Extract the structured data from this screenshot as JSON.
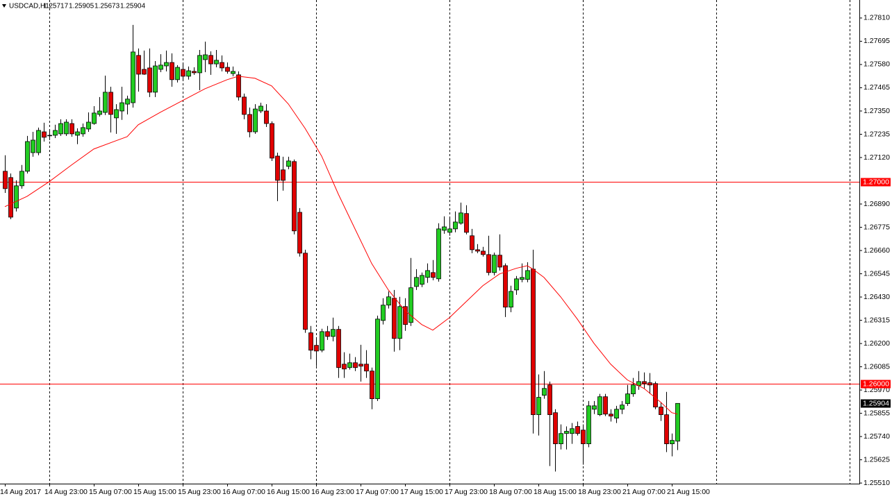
{
  "chart_data": {
    "type": "candlestick",
    "title": "USDCAD,H1",
    "up_color": "#22cc22",
    "down_color": "#e00000",
    "hline_color": "#ff0000",
    "grid": true,
    "ylim": [
      1.25507,
      1.27899
    ],
    "yticks": [
      {
        "value": 1.2781,
        "label": "1.27810"
      },
      1.27695,
      {
        "value": 1.2758,
        "label": "1.27580"
      },
      1.27465,
      {
        "value": 1.2735,
        "label": "1.27350"
      },
      1.27235,
      {
        "value": 1.2712,
        "label": "1.27120"
      },
      {
        "value": 1.2689,
        "label": "1.26890"
      },
      1.26775,
      {
        "value": 1.2666,
        "label": "1.26660"
      },
      1.26545,
      {
        "value": 1.2643,
        "label": "1.26430"
      },
      1.26315,
      {
        "value": 1.262,
        "label": "1.26200"
      },
      1.26085,
      {
        "value": 1.2597,
        "label": "1.25970"
      },
      1.25855,
      {
        "value": 1.2574,
        "label": "1.25740"
      },
      1.25625,
      {
        "value": 1.2551,
        "label": "1.25510"
      }
    ],
    "hlines": [
      {
        "value": 1.27,
        "label": "1.27000"
      },
      {
        "value": 1.26,
        "label": "1.26000"
      }
    ],
    "categories": [
      "14 Aug 2017",
      null,
      null,
      null,
      null,
      null,
      null,
      null,
      "14 Aug 23:00",
      null,
      null,
      null,
      null,
      null,
      null,
      null,
      "15 Aug 07:00",
      null,
      null,
      null,
      null,
      null,
      null,
      null,
      "15 Aug 15:00",
      null,
      null,
      null,
      null,
      null,
      null,
      null,
      "15 Aug 23:00",
      null,
      null,
      null,
      null,
      null,
      null,
      null,
      "16 Aug 07:00",
      null,
      null,
      null,
      null,
      null,
      null,
      null,
      "16 Aug 15:00",
      null,
      null,
      null,
      null,
      null,
      null,
      null,
      "16 Aug 23:00",
      null,
      null,
      null,
      null,
      null,
      null,
      null,
      "17 Aug 07:00",
      null,
      null,
      null,
      null,
      null,
      null,
      null,
      "17 Aug 15:00",
      null,
      null,
      null,
      null,
      null,
      null,
      null,
      "17 Aug 23:00",
      null,
      null,
      null,
      null,
      null,
      null,
      null,
      "18 Aug 07:00",
      null,
      null,
      null,
      null,
      null,
      null,
      null,
      "18 Aug 15:00",
      null,
      null,
      null,
      null,
      null,
      null,
      null,
      "18 Aug 23:00",
      null,
      null,
      null,
      null,
      null,
      null,
      null,
      "21 Aug 07:00",
      null,
      null,
      null,
      null,
      null,
      null,
      null,
      "21 Aug 15:00",
      null
    ],
    "open": [
      1.27052,
      1.27021,
      1.2687,
      1.2698,
      1.27052,
      1.27144,
      1.27144,
      1.27247,
      1.27227,
      1.2723,
      1.27237,
      1.27237,
      1.27288,
      1.2723,
      1.27237,
      1.27261,
      1.27288,
      1.27333,
      1.27343,
      1.27443,
      1.27316,
      1.2735,
      1.27384,
      1.27391,
      1.27625,
      1.27556,
      1.27563,
      1.27443,
      1.27556,
      1.27573,
      1.2759,
      1.27505,
      1.27556,
      1.27522,
      1.27546,
      1.27539,
      1.27604,
      1.27625,
      1.27583,
      1.2759,
      1.27566,
      1.27535,
      1.27529,
      1.27419,
      1.27333,
      1.27247,
      1.2735,
      1.2735,
      1.27288,
      1.27127,
      1.27059,
      1.27076,
      1.271,
      1.26849,
      1.26647,
      1.26253,
      1.26191,
      1.26167,
      1.26259,
      1.26235,
      1.2627,
      1.26098,
      1.26081,
      1.26105,
      1.26098,
      1.26098,
      1.26064,
      1.25927,
      1.26314,
      1.2639,
      1.26424,
      1.26225,
      1.26383,
      1.26304,
      1.26482,
      1.26493,
      1.26527,
      1.26551,
      1.2652,
      1.2676,
      1.2675,
      1.26767,
      1.26795,
      1.26843,
      1.26733,
      1.26664,
      1.26657,
      1.2664,
      1.26551,
      1.26637,
      1.26585,
      1.2638,
      1.26465,
      1.26517,
      1.26517,
      1.26568,
      1.25848,
      1.25944,
      1.25995,
      1.25858,
      1.25704,
      1.25755,
      1.25755,
      1.2579,
      1.25772,
      1.25704,
      1.25875,
      1.25848,
      1.25937,
      1.25851,
      1.25831,
      1.25875,
      1.25903,
      1.25951,
      1.25992,
      1.26012,
      1.26006,
      1.26002,
      1.25886,
      1.25848,
      1.25704,
      1.25717
    ],
    "high": [
      1.27131,
      1.27041,
      1.27007,
      1.27083,
      1.27227,
      1.27247,
      1.27268,
      1.27292,
      1.27254,
      1.27282,
      1.27309,
      1.27309,
      1.27309,
      1.27264,
      1.27288,
      1.27343,
      1.27374,
      1.27419,
      1.27525,
      1.2747,
      1.27384,
      1.2747,
      1.27426,
      1.27776,
      1.27659,
      1.27649,
      1.27659,
      1.27597,
      1.27631,
      1.27649,
      1.27635,
      1.27577,
      1.27583,
      1.2757,
      1.27566,
      1.27652,
      1.27693,
      1.27645,
      1.27652,
      1.27625,
      1.2759,
      1.2757,
      1.27546,
      1.27436,
      1.27367,
      1.27384,
      1.27391,
      1.27384,
      1.27299,
      1.27144,
      1.27124,
      1.27124,
      1.2711,
      1.2687,
      1.26664,
      1.26287,
      1.26232,
      1.26273,
      1.26287,
      1.26328,
      1.26287,
      1.26157,
      1.2615,
      1.26133,
      1.26194,
      1.26167,
      1.26081,
      1.26338,
      1.26424,
      1.26458,
      1.26465,
      1.26431,
      1.26424,
      1.26623,
      1.26568,
      1.26551,
      1.26596,
      1.26613,
      1.26795,
      1.26829,
      1.26819,
      1.26853,
      1.26897,
      1.26884,
      1.26767,
      1.26692,
      1.26678,
      1.26733,
      1.2665,
      1.2674,
      1.26596,
      1.26486,
      1.26534,
      1.26596,
      1.26602,
      1.26664,
      1.26047,
      1.26064,
      1.26012,
      1.25875,
      1.258,
      1.2579,
      1.25807,
      1.25814,
      1.258,
      1.25916,
      1.25916,
      1.25951,
      1.25951,
      1.25875,
      1.25892,
      1.25916,
      1.25995,
      1.2603,
      1.26064,
      1.26057,
      1.26054,
      1.26012,
      1.2591,
      1.25961,
      1.25755,
      1.25905
    ],
    "low": [
      1.26945,
      1.26815,
      1.26853,
      1.26966,
      1.27041,
      1.27124,
      1.27131,
      1.27199,
      1.27206,
      1.27216,
      1.27227,
      1.27227,
      1.27223,
      1.27186,
      1.27223,
      1.27247,
      1.27282,
      1.27323,
      1.2733,
      1.27244,
      1.27237,
      1.27306,
      1.27333,
      1.27367,
      1.27446,
      1.27529,
      1.27419,
      1.27419,
      1.27542,
      1.27546,
      1.2747,
      1.27491,
      1.27501,
      1.27505,
      1.27529,
      1.27453,
      1.27542,
      1.27529,
      1.27566,
      1.27546,
      1.27535,
      1.27522,
      1.27402,
      1.27309,
      1.2722,
      1.27237,
      1.2734,
      1.27271,
      1.27103,
      1.26904,
      1.26956,
      1.27062,
      1.2674,
      1.2663,
      1.26253,
      1.26122,
      1.26088,
      1.26157,
      1.26218,
      1.26211,
      1.2603,
      1.2603,
      1.26071,
      1.26064,
      1.26012,
      1.2603,
      1.25875,
      1.25916,
      1.26294,
      1.26373,
      1.2616,
      1.26167,
      1.26263,
      1.26287,
      1.26465,
      1.26479,
      1.265,
      1.26513,
      1.26506,
      1.26743,
      1.26733,
      1.2675,
      1.26788,
      1.2674,
      1.26647,
      1.26647,
      1.2663,
      1.26537,
      1.26537,
      1.26561,
      1.26331,
      1.26355,
      1.26441,
      1.26503,
      1.26503,
      1.25755,
      1.25745,
      1.25927,
      1.25594,
      1.25567,
      1.25676,
      1.25676,
      1.25704,
      1.25745,
      1.25601,
      1.25687,
      1.25851,
      1.25841,
      1.25841,
      1.25814,
      1.25807,
      1.25851,
      1.25892,
      1.25937,
      1.25971,
      1.25978,
      1.25951,
      1.25875,
      1.25817,
      1.25663,
      1.25642,
      1.25673
    ],
    "close": [
      1.26966,
      1.26825,
      1.2698,
      1.27052,
      1.27199,
      1.27206,
      1.27254,
      1.2722,
      1.2723,
      1.27254,
      1.27288,
      1.27295,
      1.27237,
      1.27247,
      1.27268,
      1.27295,
      1.2734,
      1.2735,
      1.27443,
      1.27333,
      1.27357,
      1.27391,
      1.27409,
      1.27642,
      1.27532,
      1.27532,
      1.27443,
      1.27573,
      1.27577,
      1.2759,
      1.27505,
      1.27566,
      1.27522,
      1.27549,
      1.27539,
      1.27625,
      1.27628,
      1.27583,
      1.27601,
      1.27563,
      1.27546,
      1.27546,
      1.27419,
      1.27333,
      1.27247,
      1.2736,
      1.27374,
      1.27288,
      1.27117,
      1.27007,
      1.27007,
      1.27103,
      1.26757,
      1.26647,
      1.2627,
      1.26167,
      1.26163,
      1.26259,
      1.26235,
      1.2627,
      1.26081,
      1.26074,
      1.26105,
      1.26081,
      1.26088,
      1.26064,
      1.25927,
      1.26321,
      1.2639,
      1.26431,
      1.26225,
      1.26383,
      1.26294,
      1.26476,
      1.26527,
      1.26537,
      1.26561,
      1.26527,
      1.26767,
      1.26777,
      1.26767,
      1.26801,
      1.26846,
      1.2675,
      1.26664,
      1.26657,
      1.2664,
      1.26551,
      1.26637,
      1.26578,
      1.2638,
      1.26458,
      1.2652,
      1.26527,
      1.26561,
      1.25848,
      1.25934,
      1.25978,
      1.25848,
      1.25704,
      1.25755,
      1.25766,
      1.25779,
      1.25755,
      1.25704,
      1.25892,
      1.25892,
      1.25937,
      1.25851,
      1.25841,
      1.25875,
      1.25896,
      1.25951,
      1.25995,
      1.26012,
      1.26002,
      1.25995,
      1.25886,
      1.25848,
      1.25704,
      1.25721,
      1.25904
    ],
    "ma": {
      "color": "#ff0000",
      "x": [
        0,
        4,
        8,
        12,
        16,
        20,
        22,
        24,
        28,
        32,
        36,
        40,
        42,
        45,
        48,
        51,
        54,
        57,
        60,
        63,
        66,
        69,
        72,
        75,
        77,
        80,
        83,
        86,
        89,
        92,
        94,
        95,
        97,
        100,
        103,
        106,
        109,
        112,
        115,
        118,
        120,
        121
      ],
      "values": [
        1.26877,
        1.26928,
        1.27001,
        1.27083,
        1.27162,
        1.27203,
        1.27223,
        1.27282,
        1.27344,
        1.27402,
        1.2746,
        1.27505,
        1.27522,
        1.27512,
        1.27474,
        1.27385,
        1.27265,
        1.27127,
        1.26939,
        1.26767,
        1.26596,
        1.26465,
        1.26363,
        1.26294,
        1.26266,
        1.26328,
        1.26407,
        1.26486,
        1.26544,
        1.26572,
        1.26585,
        1.26568,
        1.26527,
        1.26431,
        1.26321,
        1.26201,
        1.26098,
        1.2602,
        1.25978,
        1.2591,
        1.25858,
        1.25851
      ]
    }
  }
}
